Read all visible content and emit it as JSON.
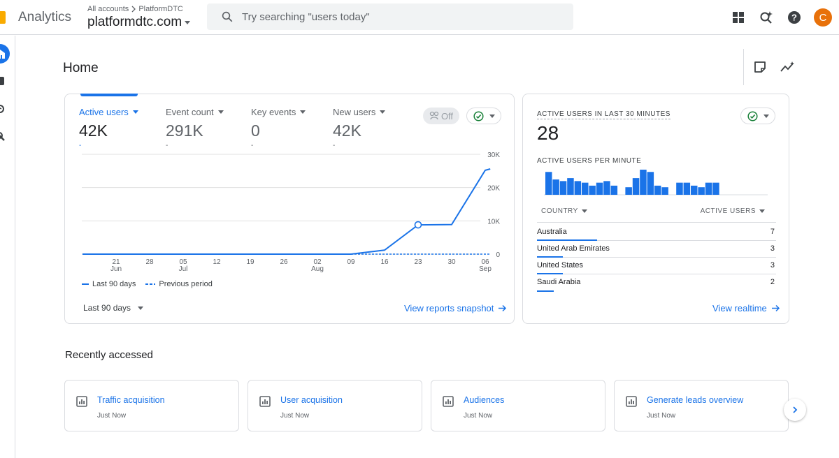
{
  "app": {
    "brand": "Analytics"
  },
  "account": {
    "crumb_parent": "All accounts",
    "crumb_child": "PlatformDTC",
    "property_name": "platformdtc.com"
  },
  "search": {
    "placeholder": "Try searching \"users today\""
  },
  "user": {
    "avatar_initial": "C",
    "avatar_color": "#e8710a"
  },
  "page": {
    "title": "Home"
  },
  "overview": {
    "metrics": [
      {
        "label": "Active users",
        "value": "42K"
      },
      {
        "label": "Event count",
        "value": "291K"
      },
      {
        "label": "Key events",
        "value": "0"
      },
      {
        "label": "New users",
        "value": "42K"
      }
    ],
    "comparison_chip": "Off",
    "legend_current": "Last 90 days",
    "legend_previous": "Previous period",
    "range_label": "Last 90 days",
    "view_link": "View reports snapshot"
  },
  "chart_data": {
    "type": "line",
    "x_ticks": [
      {
        "day": "21",
        "month": "Jun"
      },
      {
        "day": "28",
        "month": ""
      },
      {
        "day": "05",
        "month": "Jul"
      },
      {
        "day": "12",
        "month": ""
      },
      {
        "day": "19",
        "month": ""
      },
      {
        "day": "26",
        "month": ""
      },
      {
        "day": "02",
        "month": "Aug"
      },
      {
        "day": "09",
        "month": ""
      },
      {
        "day": "16",
        "month": ""
      },
      {
        "day": "23",
        "month": ""
      },
      {
        "day": "30",
        "month": ""
      },
      {
        "day": "06",
        "month": "Sep"
      }
    ],
    "y_ticks": [
      "0",
      "10K",
      "20K",
      "30K"
    ],
    "ylim": [
      0,
      30000
    ],
    "series": [
      {
        "name": "Last 90 days",
        "style": "solid",
        "x_index": [
          -1,
          0,
          1,
          2,
          3,
          4,
          5,
          6,
          7,
          8,
          9,
          10,
          11,
          11.15
        ],
        "values": [
          0,
          0,
          0,
          0,
          0,
          0,
          0,
          0,
          0,
          1200,
          8800,
          8900,
          25200,
          25600
        ]
      },
      {
        "name": "Previous period",
        "style": "dashed",
        "x_index": [
          7,
          11.15
        ],
        "values": [
          0,
          0
        ]
      }
    ],
    "highlight_index": 9,
    "grid": true,
    "color": "#1a73e8"
  },
  "realtime": {
    "title": "ACTIVE USERS IN LAST 30 MINUTES",
    "value": "28",
    "per_minute_label": "ACTIVE USERS PER MINUTE",
    "per_minute": [
      1,
      0.67,
      0.6,
      0.73,
      0.6,
      0.53,
      0.4,
      0.53,
      0.6,
      0.4,
      0,
      0.33,
      0.73,
      1.1,
      1,
      0.4,
      0.33,
      0,
      0.53,
      0.53,
      0.4,
      0.33,
      0.53,
      0.53
    ],
    "col_country": "COUNTRY",
    "col_active": "ACTIVE USERS",
    "rows": [
      {
        "country": "Australia",
        "users": "7",
        "share": 0.25
      },
      {
        "country": "United Arab Emirates",
        "users": "3",
        "share": 0.107
      },
      {
        "country": "United States",
        "users": "3",
        "share": 0.107
      },
      {
        "country": "Saudi Arabia",
        "users": "2",
        "share": 0.071
      }
    ],
    "view_link": "View realtime"
  },
  "recent": {
    "title": "Recently accessed",
    "items": [
      {
        "title": "Traffic acquisition",
        "sub": "Just Now"
      },
      {
        "title": "User acquisition",
        "sub": "Just Now"
      },
      {
        "title": "Audiences",
        "sub": "Just Now"
      },
      {
        "title": "Generate leads overview",
        "sub": "Just Now"
      }
    ]
  }
}
